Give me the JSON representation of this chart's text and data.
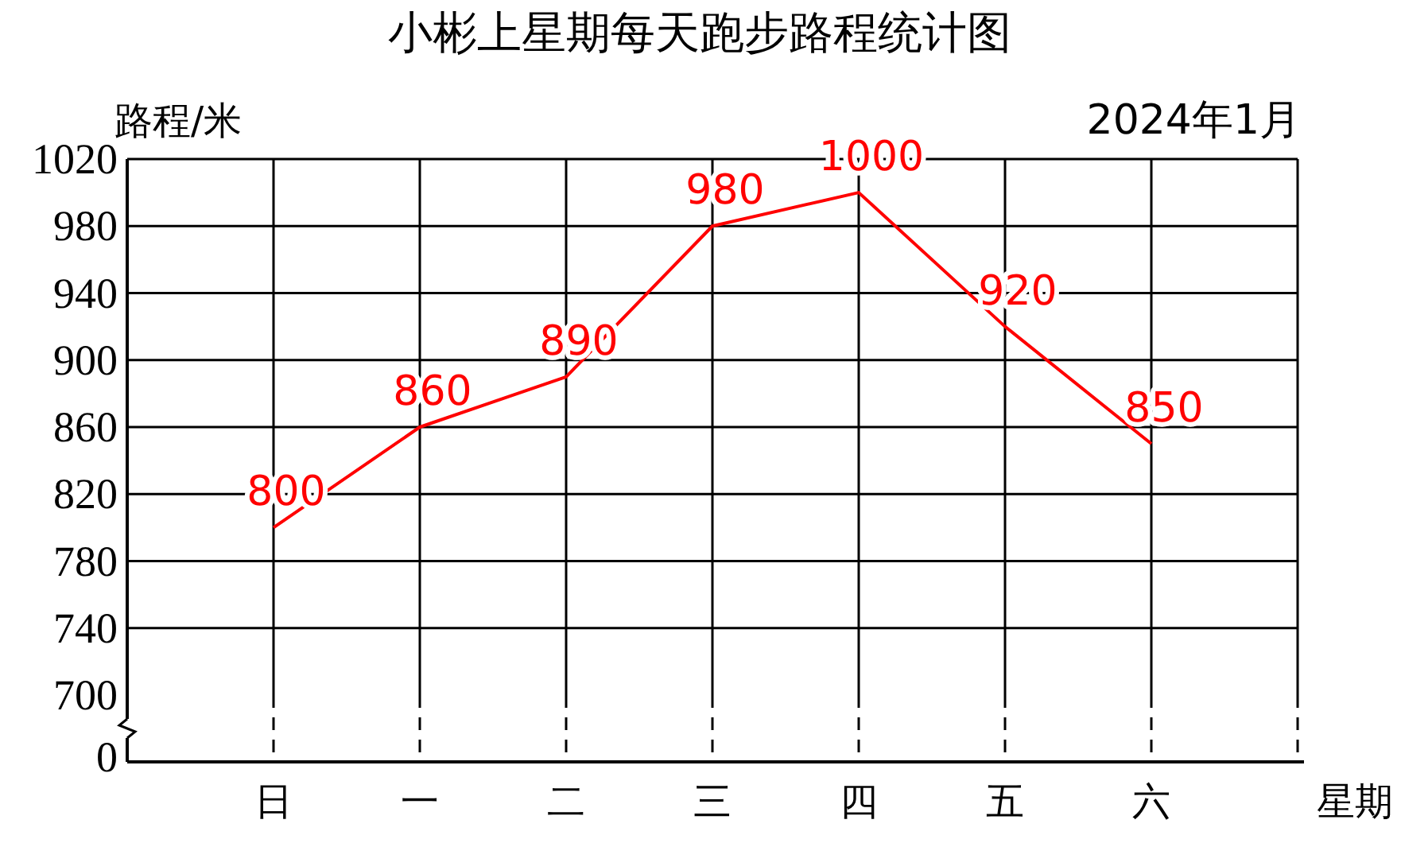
{
  "chart_data": {
    "type": "line",
    "title": "小彬上星期每天跑步路程统计图",
    "ylabel": "路程/米",
    "xlabel": "星期",
    "annotations": [
      "2024年1月",
      "0"
    ],
    "categories": [
      "日",
      "一",
      "二",
      "三",
      "四",
      "五",
      "六"
    ],
    "series": [
      {
        "color": "#ff0000",
        "values": [
          800,
          860,
          890,
          980,
          1000,
          920,
          850
        ]
      }
    ],
    "ylim": [
      700,
      1020
    ],
    "yticks": [
      700,
      740,
      780,
      820,
      860,
      900,
      940,
      980,
      1020
    ],
    "grid": true,
    "data_labels": true,
    "marker": "none",
    "line_style": "solid"
  }
}
